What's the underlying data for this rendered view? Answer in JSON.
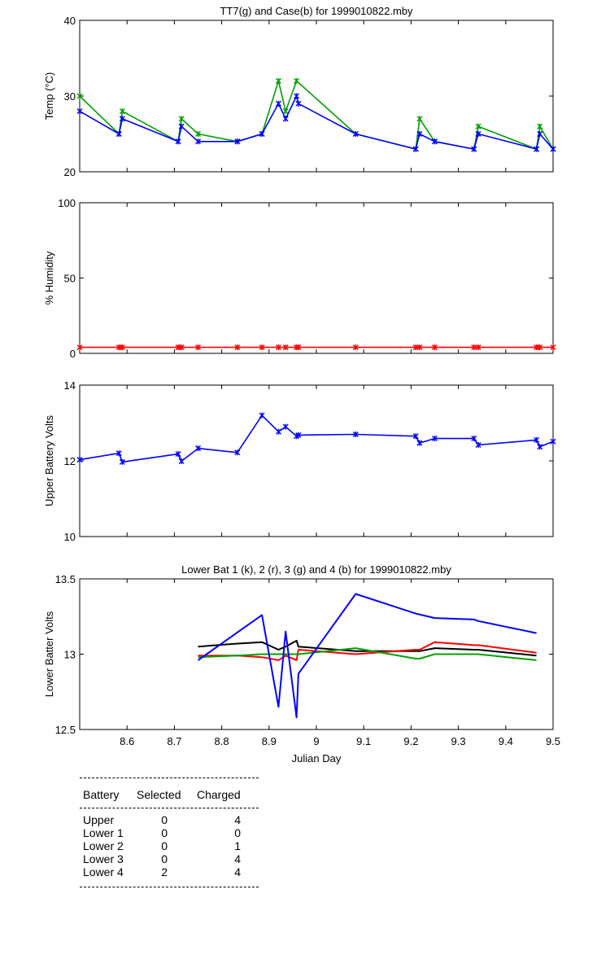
{
  "chart_data": [
    {
      "type": "line",
      "title": "TT7(g) and Case(b) for 1999010822.mby",
      "xlabel": "",
      "ylabel": "Temp  (°C)",
      "xlim": [
        8.5,
        9.5
      ],
      "ylim": [
        20,
        40
      ],
      "yticks": [
        20,
        30,
        40
      ],
      "markers": true,
      "series": [
        {
          "name": "TT7",
          "color": "#00a000",
          "x": [
            8.5,
            8.583,
            8.59,
            8.708,
            8.715,
            8.75,
            8.833,
            8.885,
            8.92,
            8.935,
            8.958,
            9.083,
            9.21,
            9.218,
            9.25,
            9.333,
            9.342,
            9.465,
            9.472,
            9.5
          ],
          "y": [
            30,
            25,
            28,
            24,
            27,
            25,
            24,
            25,
            32,
            28,
            32,
            25,
            23,
            27,
            24,
            23,
            26,
            23,
            26,
            23
          ]
        },
        {
          "name": "Case",
          "color": "#0000ff",
          "x": [
            8.5,
            8.583,
            8.59,
            8.708,
            8.715,
            8.75,
            8.833,
            8.885,
            8.92,
            8.935,
            8.958,
            8.962,
            9.083,
            9.21,
            9.218,
            9.25,
            9.333,
            9.342,
            9.465,
            9.472,
            9.5
          ],
          "y": [
            28,
            25,
            27,
            24,
            26,
            24,
            24,
            25,
            29,
            27,
            30,
            29,
            25,
            23,
            25,
            24,
            23,
            25,
            23,
            25,
            23
          ]
        }
      ]
    },
    {
      "type": "line",
      "title": "",
      "xlabel": "",
      "ylabel": "% Humidity",
      "xlim": [
        8.5,
        9.5
      ],
      "ylim": [
        0,
        100
      ],
      "yticks": [
        0,
        50,
        100
      ],
      "markers": true,
      "series": [
        {
          "name": "",
          "color": "#ff0000",
          "x": [
            8.5,
            8.583,
            8.59,
            8.708,
            8.715,
            8.75,
            8.833,
            8.885,
            8.92,
            8.935,
            8.958,
            8.962,
            9.083,
            9.21,
            9.218,
            9.25,
            9.333,
            9.342,
            9.465,
            9.472,
            9.5
          ],
          "y": [
            4,
            4,
            4,
            4,
            4,
            4,
            4,
            4,
            4,
            4,
            4,
            4,
            4,
            4,
            4,
            4,
            4,
            4,
            4,
            4,
            4
          ]
        }
      ]
    },
    {
      "type": "line",
      "title": "",
      "xlabel": "",
      "ylabel": "Upper Battery Volts",
      "xlim": [
        8.5,
        9.5
      ],
      "ylim": [
        10,
        14
      ],
      "yticks": [
        10,
        12,
        14
      ],
      "markers": true,
      "series": [
        {
          "name": "",
          "color": "#0000ff",
          "x": [
            8.5,
            8.583,
            8.59,
            8.708,
            8.715,
            8.75,
            8.833,
            8.885,
            8.92,
            8.935,
            8.958,
            8.962,
            9.083,
            9.21,
            9.218,
            9.25,
            9.333,
            9.342,
            9.465,
            9.472,
            9.5
          ],
          "y": [
            12.03,
            12.2,
            11.97,
            12.18,
            11.99,
            12.33,
            12.22,
            13.2,
            12.77,
            12.9,
            12.65,
            12.68,
            12.7,
            12.65,
            12.47,
            12.59,
            12.59,
            12.42,
            12.55,
            12.37,
            12.51
          ]
        }
      ]
    },
    {
      "type": "line",
      "title": "Lower Bat 1 (k), 2 (r), 3 (g) and 4 (b) for 1999010822.mby",
      "xlabel": "Julian Day",
      "ylabel": "Lower Batter Volts",
      "xlim": [
        8.5,
        9.5
      ],
      "ylim": [
        12.5,
        13.5
      ],
      "yticks": [
        12.5,
        13,
        13.5
      ],
      "xticks": [
        8.6,
        8.7,
        8.8,
        8.9,
        9,
        9.1,
        9.2,
        9.3,
        9.4,
        9.5
      ],
      "markers": false,
      "series": [
        {
          "name": "Lower Bat 1",
          "color": "#000000",
          "x": [
            8.75,
            8.833,
            8.885,
            8.92,
            8.935,
            8.958,
            8.962,
            9.083,
            9.21,
            9.218,
            9.25,
            9.333,
            9.342,
            9.465
          ],
          "y": [
            13.05,
            13.07,
            13.08,
            13.03,
            13.05,
            13.09,
            13.05,
            13.02,
            13.02,
            13.02,
            13.04,
            13.03,
            13.03,
            12.99
          ]
        },
        {
          "name": "Lower Bat 2",
          "color": "#ff0000",
          "x": [
            8.75,
            8.833,
            8.885,
            8.92,
            8.935,
            8.958,
            8.962,
            9.083,
            9.21,
            9.218,
            9.25,
            9.333,
            9.342,
            9.465
          ],
          "y": [
            12.99,
            12.99,
            12.98,
            12.96,
            12.99,
            12.96,
            13.03,
            13.0,
            13.03,
            13.03,
            13.08,
            13.06,
            13.06,
            13.01
          ]
        },
        {
          "name": "Lower Bat 3",
          "color": "#00a000",
          "x": [
            8.75,
            8.833,
            8.885,
            8.92,
            8.935,
            8.958,
            8.962,
            9.083,
            9.21,
            9.218,
            9.25,
            9.333,
            9.342,
            9.465
          ],
          "y": [
            12.98,
            12.99,
            13.0,
            13.0,
            13.0,
            13.0,
            13.0,
            13.04,
            12.97,
            12.97,
            13.0,
            13.0,
            13.0,
            12.96
          ]
        },
        {
          "name": "Lower Bat 4",
          "color": "#0000ff",
          "x": [
            8.75,
            8.885,
            8.92,
            8.935,
            8.958,
            8.962,
            9.083,
            9.21,
            9.25,
            9.333,
            9.342,
            9.465
          ],
          "y": [
            12.96,
            13.26,
            12.65,
            13.15,
            12.58,
            12.87,
            13.4,
            13.27,
            13.24,
            13.23,
            13.22,
            13.14
          ]
        }
      ]
    }
  ],
  "table": {
    "headers": [
      "Battery",
      "Selected",
      "Charged"
    ],
    "rows": [
      {
        "battery": "Upper",
        "selected": "0",
        "charged": "4"
      },
      {
        "battery": "Lower 1",
        "selected": "0",
        "charged": "0"
      },
      {
        "battery": "Lower 2",
        "selected": "0",
        "charged": "1"
      },
      {
        "battery": "Lower 3",
        "selected": "0",
        "charged": "4"
      },
      {
        "battery": "Lower 4",
        "selected": "2",
        "charged": "4"
      }
    ]
  }
}
